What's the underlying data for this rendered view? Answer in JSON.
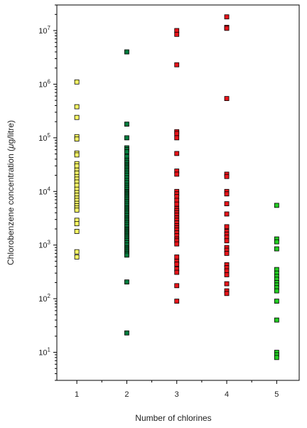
{
  "chart_data": {
    "type": "scatter",
    "title": "",
    "xlabel": "Number of chlorines",
    "ylabel_prefix": "Chlorobenzene concentration (",
    "ylabel_mu": "μ",
    "ylabel_suffix": "g/litre)",
    "x_ticks": [
      "1",
      "2",
      "3",
      "4",
      "5"
    ],
    "y_scale": "log",
    "ylim": [
      3,
      30000000
    ],
    "y_tick_bases": [
      "10",
      "10",
      "10",
      "10",
      "10",
      "10",
      "10"
    ],
    "y_tick_exponents": [
      "1",
      "2",
      "3",
      "4",
      "5",
      "6",
      "7"
    ],
    "xlim": [
      0.6,
      5.45
    ],
    "grid": false,
    "legend": "none",
    "series": [
      {
        "x": 1,
        "color": "#ffff66",
        "values": [
          1100000,
          380000,
          240000,
          105000,
          95000,
          52000,
          48000,
          33000,
          30000,
          25000,
          22000,
          19000,
          17000,
          15000,
          13000,
          11000,
          9500,
          8500,
          7500,
          6800,
          6000,
          5400,
          4900,
          4500,
          2900,
          2500,
          1800,
          750,
          600
        ]
      },
      {
        "x": 2,
        "color": "#007a3d",
        "values": [
          4000000,
          180000,
          100000,
          65000,
          60000,
          55000,
          45000,
          38000,
          35000,
          32000,
          30000,
          28000,
          26000,
          24000,
          22000,
          20000,
          18000,
          16000,
          14500,
          13000,
          12000,
          11000,
          10000,
          9500,
          9000,
          8500,
          8000,
          7500,
          7000,
          6500,
          6000,
          5500,
          5000,
          4700,
          4400,
          4100,
          3800,
          3500,
          3200,
          3000,
          2800,
          2600,
          2400,
          2200,
          2000,
          1900,
          1800,
          1700,
          1600,
          1500,
          1400,
          1300,
          1200,
          1100,
          1000,
          900,
          850,
          800,
          750,
          700,
          650,
          205,
          23
        ]
      },
      {
        "x": 3,
        "color": "#e8141a",
        "values": [
          10000000,
          8500000,
          2300000,
          130000,
          120000,
          100000,
          51000,
          24000,
          21000,
          10000,
          9000,
          8000,
          6800,
          5800,
          4800,
          4400,
          4000,
          3600,
          3200,
          2900,
          2600,
          2300,
          2100,
          1900,
          1700,
          1500,
          1300,
          1200,
          1050,
          600,
          500,
          440,
          360,
          310,
          175,
          90
        ]
      },
      {
        "x": 4,
        "color": "#e8141a",
        "values": [
          18000000,
          11500000,
          11000000,
          540000,
          21000,
          19000,
          10000,
          9000,
          5900,
          3800,
          2200,
          1800,
          1600,
          1400,
          1200,
          900,
          800,
          700,
          430,
          380,
          330,
          280,
          190,
          140,
          125
        ]
      },
      {
        "x": 5,
        "color": "#22cc22",
        "values": [
          5500,
          1300,
          1150,
          850,
          350,
          300,
          260,
          230,
          200,
          180,
          160,
          140,
          90,
          40,
          10,
          9,
          8
        ]
      }
    ]
  }
}
